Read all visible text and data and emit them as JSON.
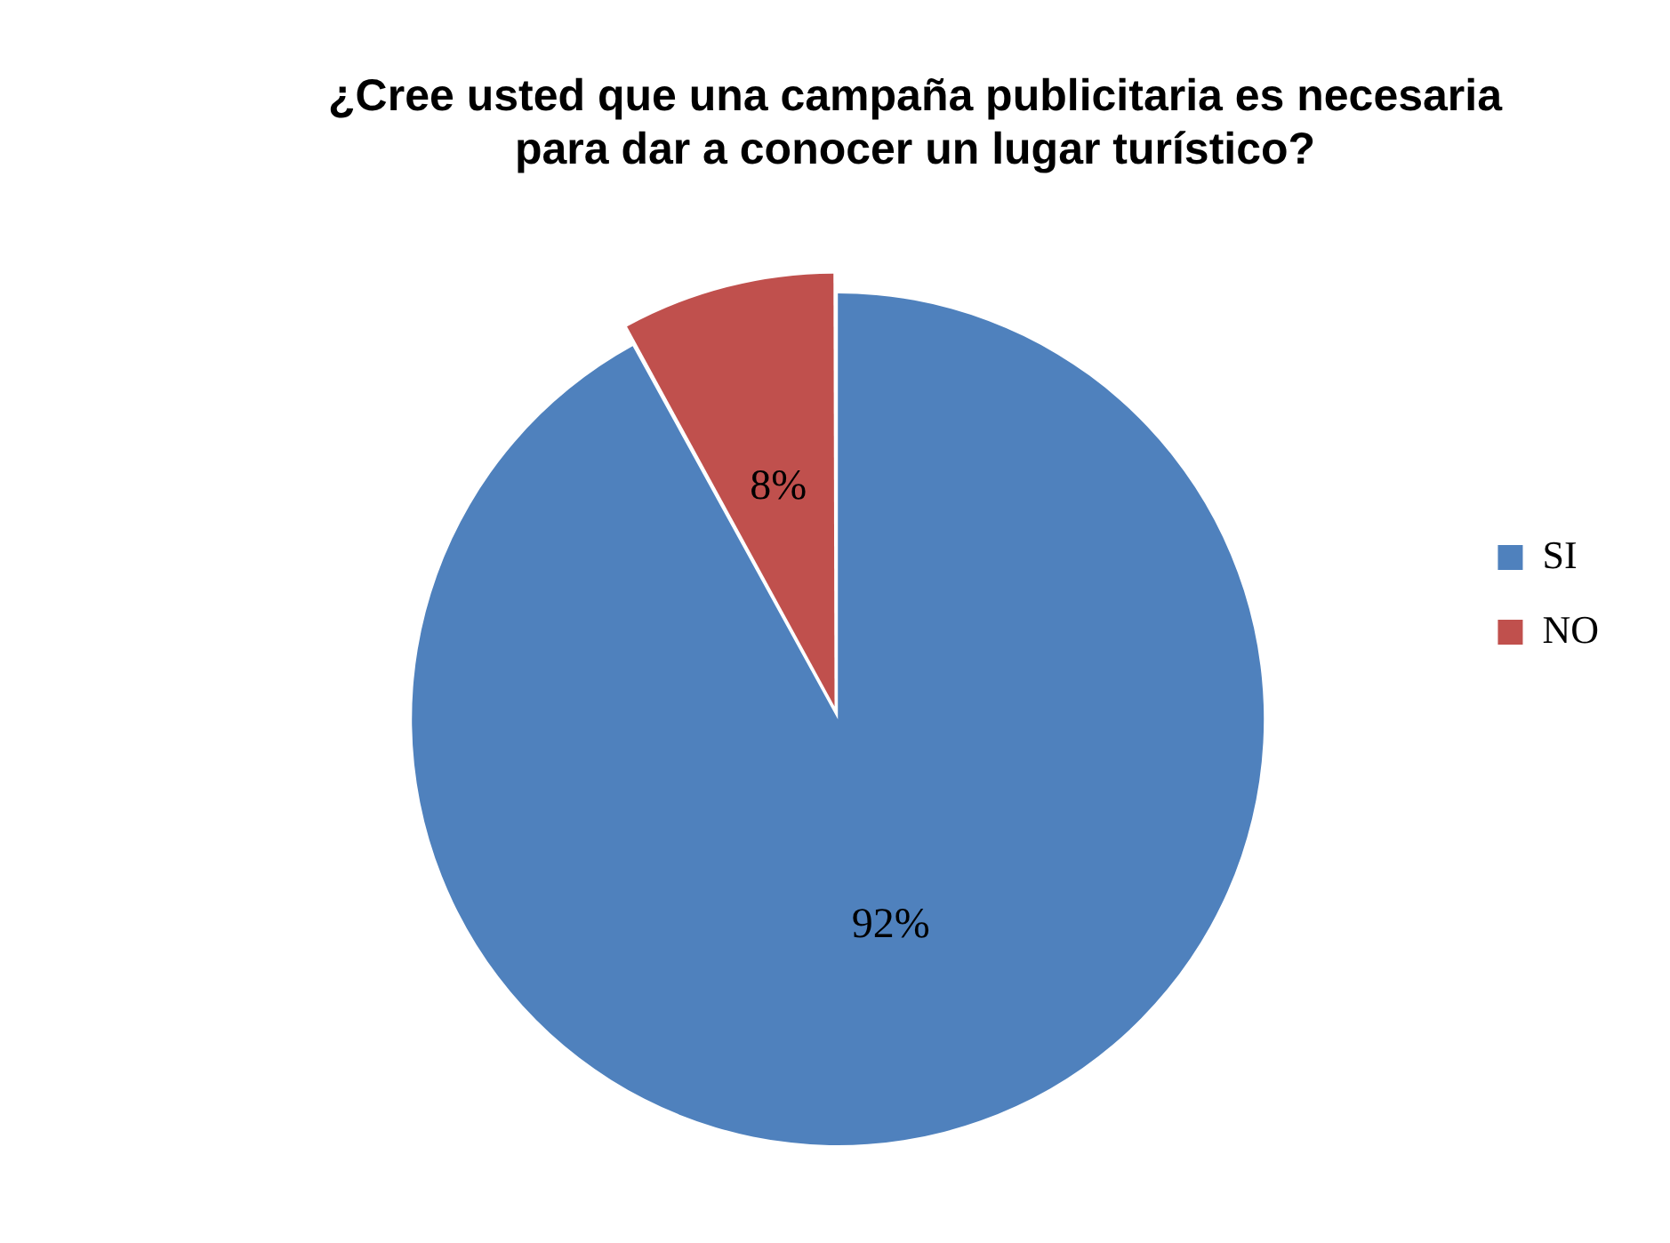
{
  "chart_data": {
    "type": "pie",
    "title": "¿Cree usted que una campaña publicitaria es necesaria para dar a conocer un lugar turístico?",
    "categories": [
      "SI",
      "NO"
    ],
    "values": [
      92,
      8
    ],
    "colors": [
      "#4f81bd",
      "#c0504d"
    ],
    "value_labels": [
      "92%",
      "8%"
    ],
    "legend": "right"
  }
}
